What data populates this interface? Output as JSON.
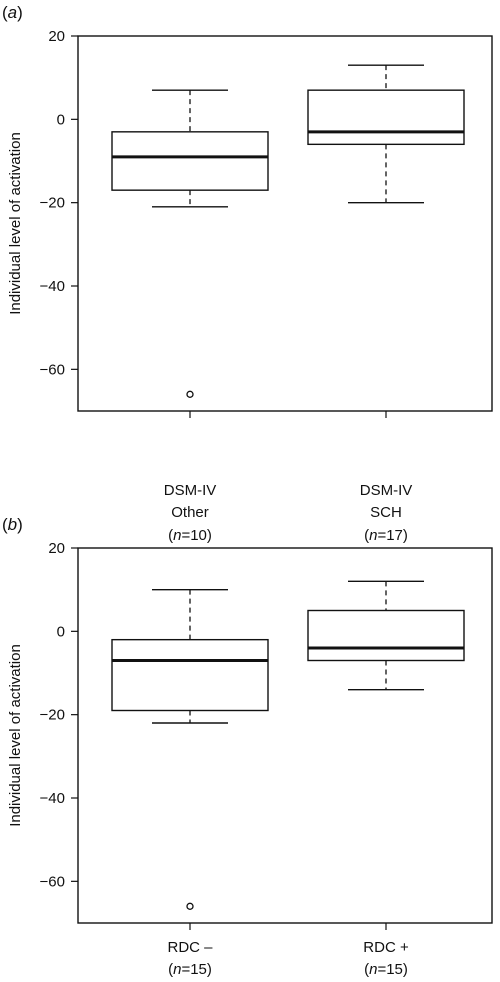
{
  "chart_data": [
    {
      "type": "boxplot",
      "panel_label": "(a)",
      "ylabel": "Individual level of activation",
      "ylim": [
        -70,
        20
      ],
      "yticks": [
        20,
        0,
        -20,
        -40,
        -60
      ],
      "grid": false,
      "groups": [
        {
          "label_lines": [
            "DSM-IV",
            "Other",
            "(n=10)"
          ],
          "whisker_high": 7,
          "q3": -3,
          "median": -9,
          "q1": -17,
          "whisker_low": -21,
          "outliers": [
            -66
          ]
        },
        {
          "label_lines": [
            "DSM-IV",
            "SCH",
            "(n=17)"
          ],
          "whisker_high": 13,
          "q3": 7,
          "median": -3,
          "q1": -6,
          "whisker_low": -20,
          "outliers": []
        }
      ]
    },
    {
      "type": "boxplot",
      "panel_label": "(b)",
      "ylabel": "Individual level of activation",
      "ylim": [
        -70,
        20
      ],
      "yticks": [
        20,
        0,
        -20,
        -40,
        -60
      ],
      "grid": false,
      "groups": [
        {
          "label_lines": [
            "RDC –",
            "(n=15)"
          ],
          "whisker_high": 10,
          "q3": -2,
          "median": -7,
          "q1": -19,
          "whisker_low": -22,
          "outliers": [
            -66
          ]
        },
        {
          "label_lines": [
            "RDC +",
            "(n=15)"
          ],
          "whisker_high": 12,
          "q3": 5,
          "median": -4,
          "q1": -7,
          "whisker_low": -14,
          "outliers": []
        }
      ]
    }
  ]
}
